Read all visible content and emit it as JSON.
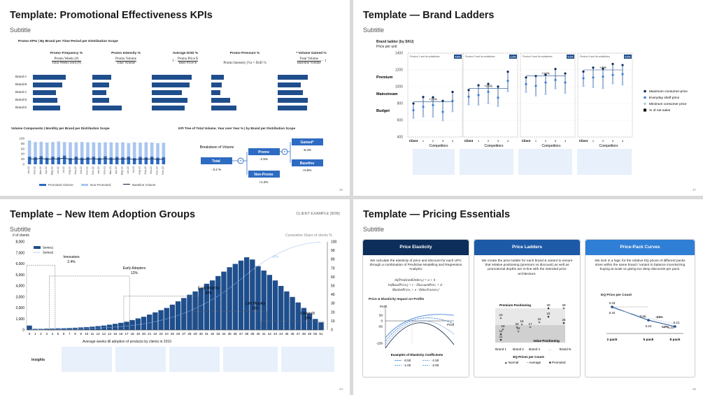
{
  "s1": {
    "title": "Template: Promotional Effectiveness KPIs",
    "subtitle": "Subtitle",
    "section_title": "Promo KPIs | By Brand per Time Period per Distribution Scope",
    "kpis": [
      {
        "name": "Promo Frequency %",
        "num": "Promo Weeks (#)",
        "den": "Total Weeks Sold (#)"
      },
      {
        "name": "Promo Intensity %",
        "num": "Promo Volume",
        "den": "Total Volume"
      },
      {
        "name": "Average DOD %",
        "formula_pre": "1 −",
        "num": "Promo Price $",
        "den": "Base Price $"
      },
      {
        "name": "Promo Pressure %",
        "formula": "Promo Intensity (%) × DoD %"
      },
      {
        "name": "* Volume Gained %",
        "num": "Total Volume",
        "den": "Baseline Volume",
        "formula_post": "− 1"
      }
    ],
    "brands": [
      "Brand A",
      "Brand B",
      "Brand C",
      "Brand D",
      "Brand E"
    ],
    "kpi_values": [
      [
        0.78,
        0.7,
        0.55,
        0.58,
        0.65
      ],
      [
        0.45,
        0.4,
        0.33,
        0.4,
        0.7
      ],
      [
        0.95,
        0.9,
        0.72,
        0.85,
        0.78
      ],
      [
        0.3,
        0.25,
        0.22,
        0.45,
        0.6
      ],
      [
        0.72,
        0.55,
        0.6,
        0.72,
        0.7
      ]
    ],
    "vol_title": "Volume Components | Monthly per Brand per Distribution Scope",
    "vol_yticks": [
      "100",
      "80",
      "60",
      "40",
      "20",
      "0"
    ],
    "vol_months": [
      "Jan-22",
      "Feb-22",
      "Mar-22",
      "Apr-22",
      "May-22",
      "Jun-22",
      "Jul-22",
      "Aug-22",
      "Sep-22",
      "Oct-22",
      "Nov-22",
      "Dec-22",
      "Jan-23",
      "Feb-23",
      "Mar-23",
      "Apr-23",
      "May-23",
      "Jun-23",
      "Jul-23",
      "Aug-23",
      "Sep-23",
      "Oct-23",
      "Nov-23",
      "Dec-23"
    ],
    "vol_promoted": [
      30,
      28,
      32,
      26,
      30,
      28,
      34,
      25,
      30,
      26,
      28,
      30,
      26,
      31,
      27,
      29,
      28,
      30,
      25,
      29,
      27,
      30,
      26,
      28
    ],
    "vol_nonpromoted": [
      62,
      58,
      55,
      58,
      56,
      60,
      52,
      60,
      55,
      60,
      57,
      55,
      58,
      54,
      58,
      55,
      57,
      52,
      60,
      55,
      58,
      54,
      56,
      55
    ],
    "vol_legend": [
      "Promoted Volume",
      "Non-Promoted",
      "Baseline Volume"
    ],
    "tree_title": "KPI Tree of Total Volume,  Year over Year % | by Brand per Distribution Scope",
    "tree": {
      "breakdown": "Breakdown of Volume",
      "total": "Total",
      "total_v": "- 0.2 %",
      "promo": "Promo",
      "promo_v": "-1.5%",
      "nonpromo": "Non-Promo",
      "nonpromo_v": "+1.2%",
      "gained": "Gained*",
      "gained_v": "-6.4%",
      "baseline": "Baseline",
      "baseline_v": "+0.5%",
      "plus": "+"
    },
    "page": "46"
  },
  "s2": {
    "title": "Template — Brand Ladders",
    "subtitle": "Subtitle",
    "chart_title": "Brand ladder (by SKU)",
    "chart_sub": "Price per unit",
    "tiers": [
      "Premium",
      "Mainstream",
      "Budget"
    ],
    "yticks": [
      "1400",
      "1200",
      "1000",
      "800",
      "600",
      "400"
    ],
    "groups": [
      {
        "label": "Product 1 and its substitutes",
        "pct": "4.6%",
        "delta": "+16%"
      },
      {
        "label": "Product 2 and its substitutes",
        "pct": "1.2%",
        "delta": "+26%"
      },
      {
        "label": "Product 3 and its substitutes",
        "pct": "0.1%",
        "delta": "+12%"
      },
      {
        "label": "Product 4 and its substitutes",
        "pct": "0.2%",
        "delta": "+4%"
      }
    ],
    "xlabels": [
      "Client",
      "1",
      "2",
      "3",
      "4"
    ],
    "competitors": "Competitors",
    "legend": [
      "Maximum consumer price",
      "Everyday shelf price",
      "Minimum consumer price",
      "% of net sales"
    ],
    "page": "47"
  },
  "s3": {
    "title": "Template – New Item Adoption Groups",
    "subtitle": "Subtitle",
    "client": "CLIENT EXAMPLE (B2B)",
    "ylabel": "# of clients",
    "y2label": "Cumulative Share of clients %",
    "yticks": [
      "8,000",
      "7,000",
      "6,000",
      "5,000",
      "4,000",
      "3,000",
      "2,000",
      "1,000",
      "0"
    ],
    "y2ticks": [
      "100",
      "90",
      "80",
      "70",
      "60",
      "50",
      "40",
      "30",
      "20",
      "10",
      "0"
    ],
    "legend": [
      "Series1",
      "Series2"
    ],
    "groups": [
      {
        "name": "Innovators",
        "pct": "2.4%"
      },
      {
        "name": "Early Adopters",
        "pct": "12%"
      },
      {
        "name": "Early Majority",
        "pct": "34%"
      },
      {
        "name": "Late Majority",
        "pct": "33%"
      },
      {
        "name": "Laggards",
        "pct": "18%"
      }
    ],
    "annot": "82%",
    "xlabel": "Average weeks till adoption of products by clients in 2019",
    "insights": "Insights",
    "page": "44",
    "chart_data": {
      "type": "bar",
      "x": [
        0,
        1,
        2,
        3,
        4,
        5,
        6,
        7,
        8,
        9,
        10,
        11,
        12,
        13,
        14,
        15,
        16,
        17,
        18,
        19,
        20,
        21,
        22,
        23,
        24,
        25,
        26,
        27,
        28,
        29,
        30,
        31,
        32,
        33,
        34,
        35,
        36,
        37,
        38,
        39,
        40,
        41,
        42,
        43,
        44,
        45,
        46,
        47,
        48,
        49,
        50,
        51
      ],
      "values": [
        400,
        100,
        100,
        120,
        130,
        150,
        160,
        180,
        200,
        230,
        260,
        300,
        350,
        400,
        480,
        560,
        650,
        750,
        900,
        1050,
        1200,
        1400,
        1600,
        1800,
        2000,
        2300,
        2600,
        2900,
        3200,
        3500,
        3800,
        4200,
        4500,
        4900,
        5300,
        5700,
        6000,
        6300,
        6600,
        6400,
        5800,
        5400,
        5000,
        4500,
        4000,
        3500,
        3000,
        2500,
        2000,
        1500,
        1000,
        700
      ],
      "ylim": [
        0,
        8000
      ],
      "y2lim": [
        0,
        100
      ]
    }
  },
  "s4": {
    "title": "Template — Pricing Essentials",
    "subtitle": "Subtitle",
    "cards": [
      {
        "head": "Price Elasticity",
        "text": "We calculate the elasticity of price and discount for each UPC through a combination of Predictive Modelling and Regression Analysis:",
        "color": "#0d2e5a"
      },
      {
        "head": "Price Ladders",
        "text": "We create the price ladder for each brand & variant to ensure that relative positioning (premium vs discount) as well as promotional depths are in-line with the intended price architecture.",
        "color": "#1c5aa8"
      },
      {
        "head": "Price-Pack Curves",
        "text": "We lock in a logic for the relative EQ prices of different packs sizes within the same brand / variant to balance incentivizing buying at scale vs giving too deep discounts per pack.",
        "color": "#2f7fd6"
      }
    ],
    "formula": [
      "ln(PredictedOrdersᵢ) = a + b ·",
      "ln(BasePriceᵢ) + c · DiscountPercᵢ + d ·",
      "MarketPriceᵢ + e · OtherFactorsᵢ²"
    ],
    "elast_title": "Price & Elasticity Impact on Profits",
    "profit": "Profit",
    "price": "Price",
    "elast_yticks": [
      "50",
      "0",
      "-50",
      "-150"
    ],
    "elast_legend_title": "Examples of Elasticity  Coefficients",
    "elast_legend": [
      "-0.50",
      "-1.50",
      "-1.00",
      "-2.00"
    ],
    "ladder_labels": {
      "premium": "Premium Positioning",
      "value": "Value Positioning"
    },
    "ladder_vals": [
      "30",
      "29",
      "23",
      "22",
      "24",
      "15",
      "12",
      "20",
      "17",
      "25",
      "18",
      "18",
      "11"
    ],
    "ladder_x": [
      "Brand 1",
      "Brand 2",
      "Brand 3",
      "...",
      "Brand N"
    ],
    "ladder_legend_title": "EQ Prices per Count:",
    "ladder_legend": [
      "Normal",
      "Average",
      "Promoted"
    ],
    "pack_title": "EQ Price per Count",
    "pack_vals": [
      "0.33",
      "0.32",
      "0.26",
      "0.24",
      "0.24",
      "0.21"
    ],
    "pack_x": [
      "2 pack",
      "5 pack",
      "8 pack"
    ],
    "pack_deltas": [
      "-21%",
      "-13%"
    ],
    "page": "45"
  }
}
